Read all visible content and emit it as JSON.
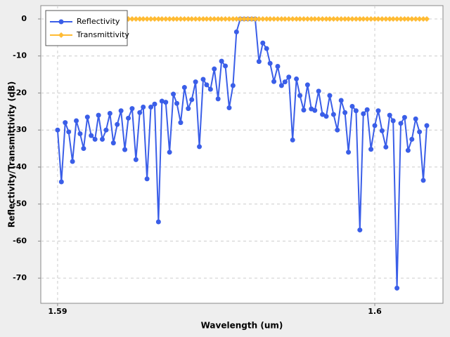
{
  "chart_data": {
    "type": "line",
    "x_label": "Wavelength (um)",
    "y_label": "Reflectivity/Transmittivity (dB)",
    "x": [
      1.59,
      1.59012,
      1.59024,
      1.59035,
      1.59047,
      1.59059,
      1.59071,
      1.59082,
      1.59094,
      1.59106,
      1.59118,
      1.59129,
      1.59141,
      1.59153,
      1.59165,
      1.59176,
      1.59188,
      1.592,
      1.59212,
      1.59223,
      1.59235,
      1.59247,
      1.59259,
      1.5927,
      1.59282,
      1.59294,
      1.59306,
      1.59318,
      1.59329,
      1.59341,
      1.59353,
      1.59365,
      1.59376,
      1.59388,
      1.594,
      1.59412,
      1.59423,
      1.59435,
      1.59447,
      1.59459,
      1.5947,
      1.59482,
      1.59494,
      1.59506,
      1.59517,
      1.59529,
      1.59541,
      1.59553,
      1.59564,
      1.59576,
      1.59588,
      1.596,
      1.59612,
      1.59623,
      1.59635,
      1.59647,
      1.59659,
      1.5967,
      1.59682,
      1.59694,
      1.59706,
      1.59717,
      1.59729,
      1.59741,
      1.59753,
      1.59764,
      1.59776,
      1.59788,
      1.598,
      1.59811,
      1.59823,
      1.59835,
      1.59847,
      1.59858,
      1.5987,
      1.59882,
      1.59894,
      1.59906,
      1.59917,
      1.59929,
      1.59941,
      1.59953,
      1.59964,
      1.59976,
      1.59988,
      1.6,
      1.60011,
      1.60023,
      1.60035,
      1.60047,
      1.60058,
      1.6007,
      1.60082,
      1.60094,
      1.60105,
      1.60117,
      1.60129,
      1.60141,
      1.60153,
      1.60164
    ],
    "series": [
      {
        "name": "Reflectivity",
        "color": "#3a5ee8",
        "marker": "circle",
        "values": [
          -30,
          -44,
          -28,
          -30.5,
          -38.5,
          -27.5,
          -31,
          -35,
          -26.5,
          -31.5,
          -32.5,
          -26,
          -32.5,
          -30,
          -25.5,
          -33.5,
          -28.5,
          -24.8,
          -35.3,
          -26.8,
          -24.2,
          -38,
          -25.3,
          -23.8,
          -43.2,
          -23.8,
          -23,
          -54.8,
          -22.2,
          -22.5,
          -36,
          -20.3,
          -22.8,
          -28,
          -18.5,
          -24.2,
          -21.8,
          -17,
          -34.5,
          -16.3,
          -17.8,
          -19,
          -13.5,
          -21.6,
          -11.4,
          -12.7,
          -24,
          -18,
          -3.5,
          0,
          0,
          0,
          0,
          0,
          -11.5,
          -6.5,
          -8,
          -12,
          -16.9,
          -12.8,
          -18,
          -17,
          -15.7,
          -32.7,
          -16.2,
          -20.7,
          -24.6,
          -17.8,
          -24.3,
          -24.7,
          -19.5,
          -25.8,
          -26.3,
          -20.7,
          -25.8,
          -30,
          -22,
          -25.3,
          -36,
          -23.6,
          -24.8,
          -57,
          -25.6,
          -24.5,
          -35.2,
          -28.8,
          -24.8,
          -30.2,
          -34.6,
          -26,
          -27.5,
          -72.7,
          -28.2,
          -26.6,
          -35.5,
          -32.5,
          -27,
          -30.5,
          -43.6,
          -28.8
        ]
      },
      {
        "name": "Transmittivity",
        "color": "#ffbb33",
        "marker": "diamond",
        "values": [
          0,
          0,
          0,
          0,
          0,
          0,
          0,
          0,
          0,
          0,
          0,
          0,
          0,
          0,
          0,
          0,
          0,
          0,
          0,
          0,
          0,
          0,
          0,
          0,
          0,
          0,
          0,
          0,
          0,
          0,
          0,
          0,
          0,
          0,
          0,
          0,
          0,
          0,
          0,
          0,
          0,
          0,
          0,
          0,
          0,
          0,
          0,
          0,
          0,
          0,
          0,
          0,
          0,
          0,
          0,
          0,
          0,
          0,
          0,
          0,
          0,
          0,
          0,
          0,
          0,
          0,
          0,
          0,
          0,
          0,
          0,
          0,
          0,
          0,
          0,
          0,
          0,
          0,
          0,
          0,
          0,
          0,
          0,
          0,
          0,
          0,
          0,
          0,
          0,
          0,
          0,
          0,
          0,
          0,
          0,
          0,
          0,
          0,
          0,
          0
        ]
      }
    ],
    "xlim": [
      1.58947,
      1.60215
    ],
    "ylim": [
      -76.8,
      3.6
    ],
    "xticks": [
      1.59,
      1.6
    ],
    "yticks": [
      0,
      -10,
      -20,
      -30,
      -40,
      -50,
      -60,
      -70
    ],
    "grid": true,
    "legend": "upper-left"
  }
}
